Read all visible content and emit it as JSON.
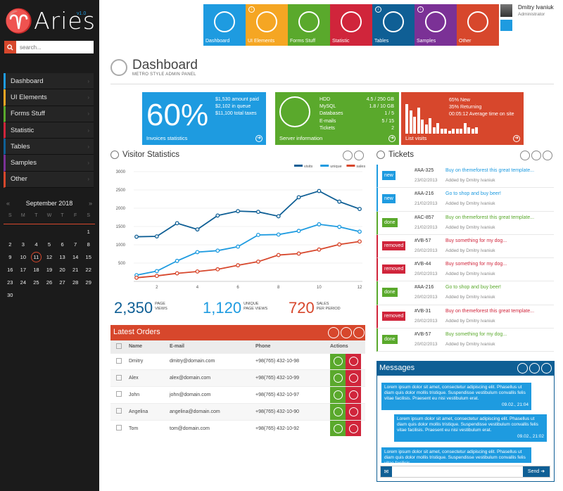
{
  "sidebar": {
    "logo": "♈Aries",
    "version": "v1.0",
    "search_placeholder": "search...",
    "nav": [
      {
        "label": "Dashboard",
        "color": "#1e9be0"
      },
      {
        "label": "UI Elements",
        "color": "#f5a623"
      },
      {
        "label": "Forms Stuff",
        "color": "#5aa92c"
      },
      {
        "label": "Statistic",
        "color": "#d0253b"
      },
      {
        "label": "Tables",
        "color": "#0f5f95"
      },
      {
        "label": "Samples",
        "color": "#7b3196"
      },
      {
        "label": "Other",
        "color": "#d7472c"
      }
    ]
  },
  "calendar": {
    "month": "September 2018",
    "prev": "«",
    "next": "»",
    "dows": [
      "S",
      "M",
      "T",
      "W",
      "T",
      "F",
      "S"
    ],
    "days": [
      "",
      "",
      "",
      "",
      "",
      "",
      "1",
      "2",
      "3",
      "4",
      "5",
      "6",
      "7",
      "8",
      "9",
      "10",
      "11",
      "12",
      "13",
      "14",
      "15",
      "16",
      "17",
      "18",
      "19",
      "20",
      "21",
      "22",
      "23",
      "24",
      "25",
      "26",
      "27",
      "28",
      "29",
      "30",
      "",
      "",
      "",
      "",
      "",
      ""
    ],
    "today": "11"
  },
  "tiles": [
    {
      "label": "Dashboard",
      "color": "#1e9be0",
      "dl": false
    },
    {
      "label": "UI Elements",
      "color": "#f5a623",
      "dl": true
    },
    {
      "label": "Forms Stuff",
      "color": "#5aa92c",
      "dl": false
    },
    {
      "label": "Statistic",
      "color": "#d0253b",
      "dl": false
    },
    {
      "label": "Tables",
      "color": "#0f5f95",
      "dl": true
    },
    {
      "label": "Samples",
      "color": "#7b3196",
      "dl": true
    },
    {
      "label": "Other",
      "color": "#d7472c",
      "dl": false
    }
  ],
  "user": {
    "name": "Dmitry Ivaniuk",
    "role": "Administrator"
  },
  "page": {
    "title": "Dashboard",
    "subtitle": "METRO STYLE ADMIN PANEL"
  },
  "stats": {
    "invoices": {
      "big": "60%",
      "lines": [
        "$1,530 amount paid",
        "$2,102 in queue",
        "$11,100 total taxes"
      ],
      "label": "Invoices statistics"
    },
    "server": {
      "rows": [
        [
          "HDD",
          "4.5 / 250 GB"
        ],
        [
          "MySQL",
          "1.8 / 10 GB"
        ],
        [
          "Databases",
          "1 / 5"
        ],
        [
          "E-mails",
          "5 / 15"
        ],
        [
          "Tickets",
          "2"
        ]
      ],
      "label": "Server information"
    },
    "visits": {
      "lines": [
        "65% New",
        "35% Returning",
        "00:05:12 Average time on site"
      ],
      "label": "List visits",
      "bars": [
        0.95,
        0.75,
        0.55,
        0.85,
        0.45,
        0.3,
        0.5,
        0.2,
        0.35,
        0.15,
        0.15,
        0.1,
        0.15,
        0.15,
        0.15,
        0.35,
        0.2,
        0.15,
        0.2
      ]
    }
  },
  "visitor": {
    "title": "Visitor Statistics",
    "chart_data": {
      "type": "line",
      "x": [
        1,
        2,
        3,
        4,
        5,
        6,
        7,
        8,
        9,
        10,
        11,
        12
      ],
      "ylim": [
        0,
        3000
      ],
      "yticks": [
        500,
        1000,
        1500,
        2000,
        2500,
        3000
      ],
      "xticks": [
        2,
        4,
        6,
        8,
        10,
        12
      ],
      "series": [
        {
          "name": "visits",
          "color": "#0f5f95",
          "values": [
            1220,
            1230,
            1590,
            1420,
            1800,
            1920,
            1900,
            1780,
            2300,
            2470,
            2180,
            1980
          ]
        },
        {
          "name": "unique",
          "color": "#1e9be0",
          "values": [
            170,
            280,
            560,
            800,
            840,
            950,
            1270,
            1280,
            1380,
            1560,
            1490,
            1360
          ]
        },
        {
          "name": "sales",
          "color": "#d7472c",
          "values": [
            100,
            150,
            220,
            270,
            330,
            440,
            540,
            720,
            760,
            870,
            1010,
            1090
          ]
        }
      ]
    },
    "totals": [
      {
        "n": "2,350",
        "l1": "PAGE",
        "l2": "VIEWS",
        "color": "#0f5f95"
      },
      {
        "n": "1,120",
        "l1": "UNIQUE",
        "l2": "PAGE VIEWS",
        "color": "#1e9be0"
      },
      {
        "n": "720",
        "l1": "SALES",
        "l2": "PER PERIOD",
        "color": "#d7472c"
      }
    ]
  },
  "orders": {
    "title": "Latest Orders",
    "headers": [
      "Name",
      "E-mail",
      "Phone",
      "Actions"
    ],
    "rows": [
      [
        "Dmitry",
        "dmitry@domain.com",
        "+98(765) 432-10-98"
      ],
      [
        "Alex",
        "alex@domain.com",
        "+98(765) 432-10-99"
      ],
      [
        "John",
        "john@domain.com",
        "+98(765) 432-10-97"
      ],
      [
        "Angelina",
        "angelina@domain.com",
        "+98(765) 432-10-90"
      ],
      [
        "Tom",
        "tom@domain.com",
        "+98(765) 432-10-92"
      ]
    ]
  },
  "tickets": {
    "title": "Tickets",
    "items": [
      {
        "tag": "new",
        "tagcolor": "#1e9be0",
        "id": "#AA-325",
        "date": "23/02/2013",
        "title": "Buy on themeforest this great template...",
        "by": "Added by Dmitry Ivaniuk"
      },
      {
        "tag": "new",
        "tagcolor": "#1e9be0",
        "id": "#AA-216",
        "date": "21/02/2013",
        "title": "Go to shop and buy beer!",
        "by": "Added by Dmitry Ivaniuk"
      },
      {
        "tag": "done",
        "tagcolor": "#5aa92c",
        "id": "#AC-857",
        "date": "21/02/2013",
        "title": "Buy on themeforest this great template...",
        "by": "Added by Dmitry Ivaniuk"
      },
      {
        "tag": "removed",
        "tagcolor": "#d0253b",
        "id": "#VB-57",
        "date": "20/02/2013",
        "title": "Buy something for my dog...",
        "by": "Added by Dmitry Ivaniuk"
      },
      {
        "tag": "removed",
        "tagcolor": "#d0253b",
        "id": "#VB-44",
        "date": "20/02/2013",
        "title": "Buy something for my dog...",
        "by": "Added by Dmitry Ivaniuk"
      },
      {
        "tag": "done",
        "tagcolor": "#5aa92c",
        "id": "#AA-216",
        "date": "20/02/2013",
        "title": "Go to shop and buy beer!",
        "by": "Added by Dmitry Ivaniuk"
      },
      {
        "tag": "removed",
        "tagcolor": "#d0253b",
        "id": "#VB-31",
        "date": "20/02/2013",
        "title": "Buy on themeforest this great template...",
        "by": "Added by Dmitry Ivaniuk"
      },
      {
        "tag": "done",
        "tagcolor": "#5aa92c",
        "id": "#VB-57",
        "date": "20/02/2013",
        "title": "Buy something for my dog...",
        "by": "Added by Dmitry Ivaniuk"
      }
    ]
  },
  "messages": {
    "title": "Messages",
    "send": "Send",
    "items": [
      {
        "text": "Lorem ipsum dolor sit amet, consectetur adipiscing elit. Phasellus ut diam quis dolor mollis tristique. Suspendisse vestibulum convallis felis vitae facilisis. Praesent eu nisi vestibulum erat.",
        "time": "09.02., 21:04"
      },
      {
        "text": "Lorem ipsum dolor sit amet, consectetur adipiscing elit. Phasellus ut diam quis dolor mollis tristique. Suspendisse vestibulum convallis felis vitae facilisis. Praesent eu nisi vestibulum erat.",
        "time": "09.02., 21:02"
      },
      {
        "text": "Lorem ipsum dolor sit amet, consectetur adipiscing elit. Phasellus ut diam quis dolor mollis tristique. Suspendisse vestibulum convallis felis vitae facilisis.",
        "time": ""
      }
    ]
  }
}
